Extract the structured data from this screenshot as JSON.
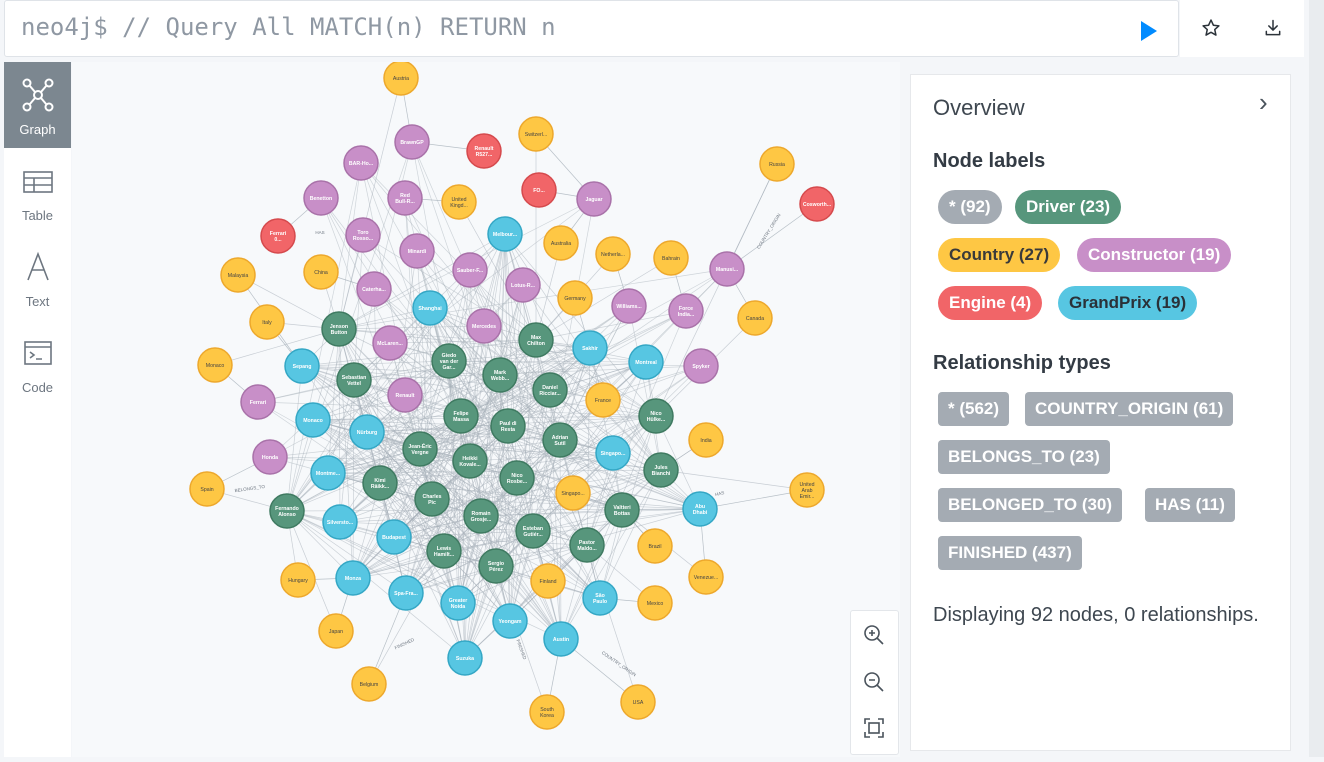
{
  "editor": {
    "prompt": "neo4j$",
    "query": "// Query All MATCH(n) RETURN n"
  },
  "sidebar": {
    "items": [
      {
        "label": "Graph",
        "icon": "graph-icon",
        "active": true
      },
      {
        "label": "Table",
        "icon": "table-icon"
      },
      {
        "label": "Text",
        "icon": "text-icon"
      },
      {
        "label": "Code",
        "icon": "code-icon"
      }
    ]
  },
  "colors": {
    "Driver": "#57967c",
    "Country": "#fec744",
    "Constructor": "#c88fc8",
    "Engine": "#f16568",
    "GrandPrix": "#57c6e2",
    "relationship": "#a4abb3",
    "accent": "#018bff"
  },
  "overview": {
    "title": "Overview",
    "node_labels_heading": "Node labels",
    "node_labels": [
      {
        "text": "* (92)",
        "type": "All"
      },
      {
        "text": "Driver (23)",
        "type": "Driver"
      },
      {
        "text": "Country (27)",
        "type": "Country"
      },
      {
        "text": "Constructor (19)",
        "type": "Constructor"
      },
      {
        "text": "Engine (4)",
        "type": "Engine"
      },
      {
        "text": "GrandPrix (19)",
        "type": "GrandPrix"
      }
    ],
    "rel_types_heading": "Relationship types",
    "rel_types": [
      "* (562)",
      "COUNTRY_ORIGIN (61)",
      "BELONGS_TO (23)",
      "BELONGED_TO (30)",
      "HAS (11)",
      "FINISHED (437)"
    ],
    "description": "Displaying 92 nodes, 0 relationships."
  },
  "graph": {
    "edge_labels": [
      "COUNTRY_ORIGIN",
      "HAS",
      "FINISHED",
      "BELONGS_TO"
    ],
    "nodes": [
      {
        "label": "Austria",
        "type": "Country"
      },
      {
        "label": "BrawnGP",
        "type": "Constructor"
      },
      {
        "label": "Renault R527...",
        "type": "Engine"
      },
      {
        "label": "Switzerl...",
        "type": "Country"
      },
      {
        "label": "BAR-Ho...",
        "type": "Constructor"
      },
      {
        "label": "Russia",
        "type": "Country"
      },
      {
        "label": "FO...",
        "type": "Engine"
      },
      {
        "label": "Jaguar",
        "type": "Constructor"
      },
      {
        "label": "Benetton",
        "type": "Constructor"
      },
      {
        "label": "Red Bull-R...",
        "type": "Constructor"
      },
      {
        "label": "United Kingd...",
        "type": "Country"
      },
      {
        "label": "Cosworth...",
        "type": "Engine"
      },
      {
        "label": "Ferrari 0...",
        "type": "Engine"
      },
      {
        "label": "Toro Rosso...",
        "type": "Constructor"
      },
      {
        "label": "Melbour...",
        "type": "GrandPrix"
      },
      {
        "label": "Australia",
        "type": "Country"
      },
      {
        "label": "Netherla...",
        "type": "Country"
      },
      {
        "label": "Bahrain",
        "type": "Country"
      },
      {
        "label": "Minardi",
        "type": "Constructor"
      },
      {
        "label": "Malaysia",
        "type": "Country"
      },
      {
        "label": "China",
        "type": "Country"
      },
      {
        "label": "Sauber-F...",
        "type": "Constructor"
      },
      {
        "label": "Manusi...",
        "type": "Constructor"
      },
      {
        "label": "Caterha...",
        "type": "Constructor"
      },
      {
        "label": "Lotus-R...",
        "type": "Constructor"
      },
      {
        "label": "Germany",
        "type": "Country"
      },
      {
        "label": "Williams...",
        "type": "Constructor"
      },
      {
        "label": "Force India...",
        "type": "Constructor"
      },
      {
        "label": "Italy",
        "type": "Country"
      },
      {
        "label": "Shanghai",
        "type": "GrandPrix"
      },
      {
        "label": "Canada",
        "type": "Country"
      },
      {
        "label": "Jenson Button",
        "type": "Driver"
      },
      {
        "label": "Mercedes",
        "type": "Constructor"
      },
      {
        "label": "McLaren...",
        "type": "Constructor"
      },
      {
        "label": "Max Chilton",
        "type": "Driver"
      },
      {
        "label": "Sakhir",
        "type": "GrandPrix"
      },
      {
        "label": "Giedo van der Gar...",
        "type": "Driver"
      },
      {
        "label": "Sepang",
        "type": "GrandPrix"
      },
      {
        "label": "Montreal",
        "type": "GrandPrix"
      },
      {
        "label": "Spyker",
        "type": "Constructor"
      },
      {
        "label": "Monaco",
        "type": "Country"
      },
      {
        "label": "Sebastian Vettel",
        "type": "Driver"
      },
      {
        "label": "Mark Webb...",
        "type": "Driver"
      },
      {
        "label": "Renault",
        "type": "Constructor"
      },
      {
        "label": "Daniel Ricciar...",
        "type": "Driver"
      },
      {
        "label": "France",
        "type": "Country"
      },
      {
        "label": "Ferrari",
        "type": "Constructor"
      },
      {
        "label": "Felipe Massa",
        "type": "Driver"
      },
      {
        "label": "Nico Hülke...",
        "type": "Driver"
      },
      {
        "label": "Monaco",
        "type": "GrandPrix"
      },
      {
        "label": "Paul di Resta",
        "type": "Driver"
      },
      {
        "label": "Nürburg",
        "type": "GrandPrix"
      },
      {
        "label": "Adrian Sutil",
        "type": "Driver"
      },
      {
        "label": "India",
        "type": "Country"
      },
      {
        "label": "Jean-Éric Vergne",
        "type": "Driver"
      },
      {
        "label": "Singapo...",
        "type": "GrandPrix"
      },
      {
        "label": "Honda",
        "type": "Constructor"
      },
      {
        "label": "Heikki Kovale...",
        "type": "Driver"
      },
      {
        "label": "Jules Bianchi",
        "type": "Driver"
      },
      {
        "label": "Montme...",
        "type": "GrandPrix"
      },
      {
        "label": "Nico Rosbe...",
        "type": "Driver"
      },
      {
        "label": "Kimi Räikk...",
        "type": "Driver"
      },
      {
        "label": "Singapo...",
        "type": "Country"
      },
      {
        "label": "United Arab Emir...",
        "type": "Country"
      },
      {
        "label": "Spain",
        "type": "Country"
      },
      {
        "label": "Charles Pic",
        "type": "Driver"
      },
      {
        "label": "Fernando Alonso",
        "type": "Driver"
      },
      {
        "label": "Abu Dhabi",
        "type": "GrandPrix"
      },
      {
        "label": "Valtteri Bottas",
        "type": "Driver"
      },
      {
        "label": "Silversto...",
        "type": "GrandPrix"
      },
      {
        "label": "Romain Grosje...",
        "type": "Driver"
      },
      {
        "label": "Esteban Gutiér...",
        "type": "Driver"
      },
      {
        "label": "Budapest",
        "type": "GrandPrix"
      },
      {
        "label": "Pastor Maldo...",
        "type": "Driver"
      },
      {
        "label": "Brazil",
        "type": "Country"
      },
      {
        "label": "Lewis Hamilt...",
        "type": "Driver"
      },
      {
        "label": "Sergio Pérez",
        "type": "Driver"
      },
      {
        "label": "Venezue...",
        "type": "Country"
      },
      {
        "label": "Hungary",
        "type": "Country"
      },
      {
        "label": "Monza",
        "type": "GrandPrix"
      },
      {
        "label": "Spa-Fra...",
        "type": "GrandPrix"
      },
      {
        "label": "Finland",
        "type": "Country"
      },
      {
        "label": "São Paulo",
        "type": "GrandPrix"
      },
      {
        "label": "Greater Noida",
        "type": "GrandPrix"
      },
      {
        "label": "Mexico",
        "type": "Country"
      },
      {
        "label": "Yeongam",
        "type": "GrandPrix"
      },
      {
        "label": "Japan",
        "type": "Country"
      },
      {
        "label": "Austin",
        "type": "GrandPrix"
      },
      {
        "label": "Suzuka",
        "type": "GrandPrix"
      },
      {
        "label": "USA",
        "type": "Country"
      },
      {
        "label": "Belgium",
        "type": "Country"
      },
      {
        "label": "South Korea",
        "type": "Country"
      }
    ]
  }
}
